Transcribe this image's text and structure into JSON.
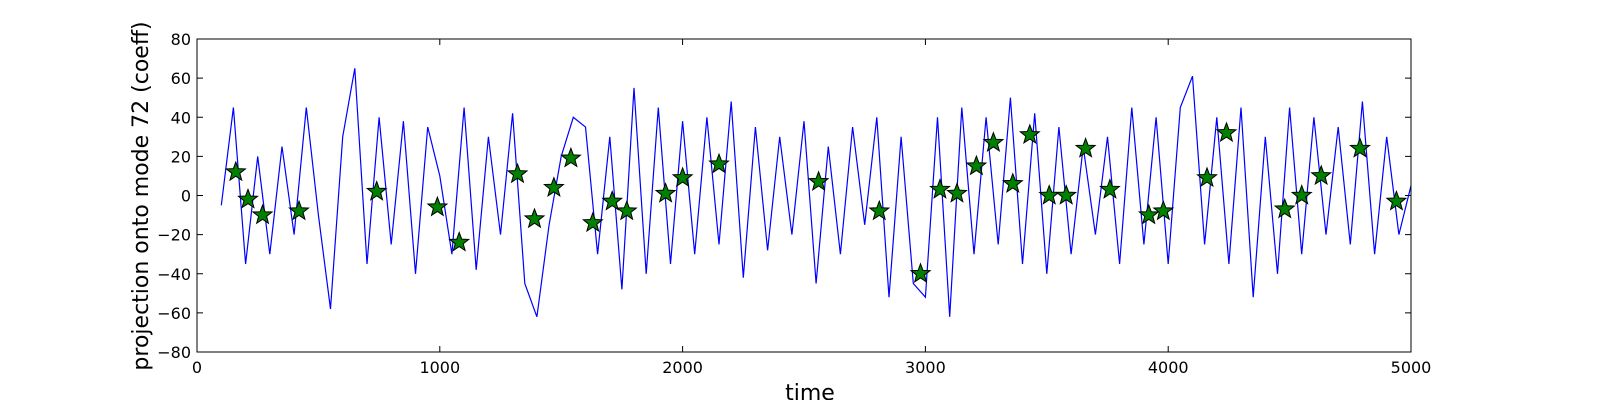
{
  "chart_data": {
    "type": "line",
    "xlabel": "time",
    "ylabel": "projection onto mode 72 (coeff)",
    "xlim": [
      0,
      5000
    ],
    "ylim": [
      -80,
      80
    ],
    "xticks": [
      0,
      1000,
      2000,
      3000,
      4000,
      5000
    ],
    "yticks": [
      {
        "value": -80,
        "label": "−80"
      },
      {
        "value": -60,
        "label": "−60"
      },
      {
        "value": -40,
        "label": "−40"
      },
      {
        "value": -20,
        "label": "−20"
      },
      0,
      20,
      40,
      60,
      80
    ],
    "grid": false,
    "series": [
      {
        "color": "#0000ff",
        "marker": "none",
        "x": [
          100,
          150,
          200,
          250,
          300,
          350,
          400,
          450,
          500,
          550,
          600,
          650,
          700,
          750,
          800,
          850,
          900,
          950,
          1000,
          1050,
          1100,
          1150,
          1200,
          1250,
          1300,
          1350,
          1400,
          1450,
          1500,
          1550,
          1600,
          1650,
          1700,
          1750,
          1800,
          1850,
          1900,
          1950,
          2000,
          2050,
          2100,
          2150,
          2200,
          2250,
          2300,
          2350,
          2400,
          2450,
          2500,
          2550,
          2600,
          2650,
          2700,
          2750,
          2800,
          2850,
          2900,
          2950,
          3000,
          3050,
          3100,
          3150,
          3200,
          3250,
          3300,
          3350,
          3400,
          3450,
          3500,
          3550,
          3600,
          3650,
          3700,
          3750,
          3800,
          3850,
          3900,
          3950,
          4000,
          4050,
          4100,
          4150,
          4200,
          4250,
          4300,
          4350,
          4400,
          4450,
          4500,
          4550,
          4600,
          4650,
          4700,
          4750,
          4800,
          4850,
          4900,
          4950,
          5000
        ],
        "values": [
          -5,
          45,
          -35,
          20,
          -30,
          25,
          -20,
          45,
          -10,
          -58,
          30,
          65,
          -35,
          40,
          -25,
          38,
          -40,
          35,
          10,
          -30,
          45,
          -38,
          30,
          -20,
          42,
          -45,
          -62,
          -15,
          20,
          40,
          35,
          -30,
          30,
          -48,
          55,
          -40,
          45,
          -35,
          38,
          -30,
          40,
          -25,
          48,
          -42,
          35,
          -28,
          30,
          -20,
          38,
          -45,
          25,
          -30,
          35,
          -15,
          40,
          -52,
          30,
          -45,
          -52,
          40,
          -62,
          45,
          -30,
          40,
          -25,
          50,
          -35,
          42,
          -40,
          35,
          -30,
          25,
          -20,
          30,
          -35,
          45,
          -25,
          40,
          -35,
          45,
          61,
          -25,
          40,
          -35,
          45,
          -52,
          30,
          -40,
          45,
          -30,
          40,
          -20,
          35,
          -25,
          48,
          -30,
          30,
          -20,
          5
        ]
      },
      {
        "color": "#008000",
        "marker": "star",
        "x": [
          160,
          210,
          270,
          420,
          740,
          990,
          1080,
          1320,
          1390,
          1470,
          1540,
          1630,
          1710,
          1770,
          1930,
          2000,
          2150,
          2560,
          2810,
          2980,
          3060,
          3130,
          3210,
          3280,
          3360,
          3430,
          3510,
          3580,
          3660,
          3760,
          3920,
          3980,
          4160,
          4240,
          4480,
          4550,
          4630,
          4790,
          4940
        ],
        "values": [
          12,
          -2,
          -10,
          -8,
          2,
          -6,
          -24,
          11,
          -12,
          4,
          19,
          -14,
          -3,
          -8,
          1,
          9,
          16,
          7,
          -8,
          -40,
          3,
          1,
          15,
          27,
          6,
          31,
          0,
          0,
          24,
          3,
          -10,
          -8,
          9,
          32,
          -7,
          0,
          10,
          24,
          -3
        ]
      }
    ]
  }
}
